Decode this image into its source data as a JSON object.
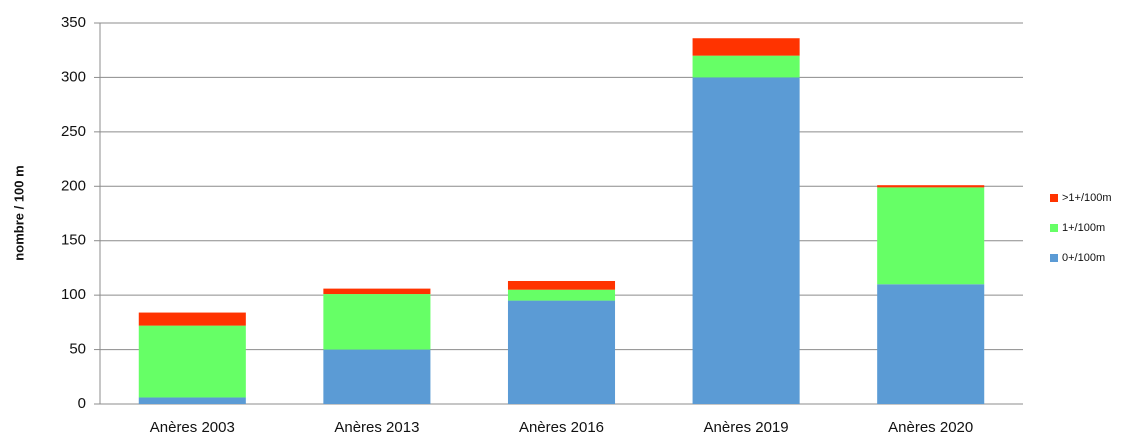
{
  "chart_data": {
    "type": "stacked_bar",
    "y_label": "nombre / 100 m",
    "categories": [
      "Anères 2003",
      "Anères 2013",
      "Anères 2016",
      "Anères 2019",
      "Anères 2020"
    ],
    "series": [
      {
        "name": "0+/100m",
        "color": "#5b9bd5",
        "values": [
          6,
          50,
          95,
          300,
          110
        ]
      },
      {
        "name": "1+/100m",
        "color": "#66ff66",
        "values": [
          66,
          51,
          10,
          20,
          89
        ]
      },
      {
        "name": ">1+/100m",
        "color": "#ff3300",
        "values": [
          12,
          5,
          8,
          16,
          2
        ]
      }
    ],
    "ylim": [
      0,
      350
    ],
    "yticks": [
      0,
      50,
      100,
      150,
      200,
      250,
      300,
      350
    ],
    "grid": true,
    "legend": "right"
  }
}
